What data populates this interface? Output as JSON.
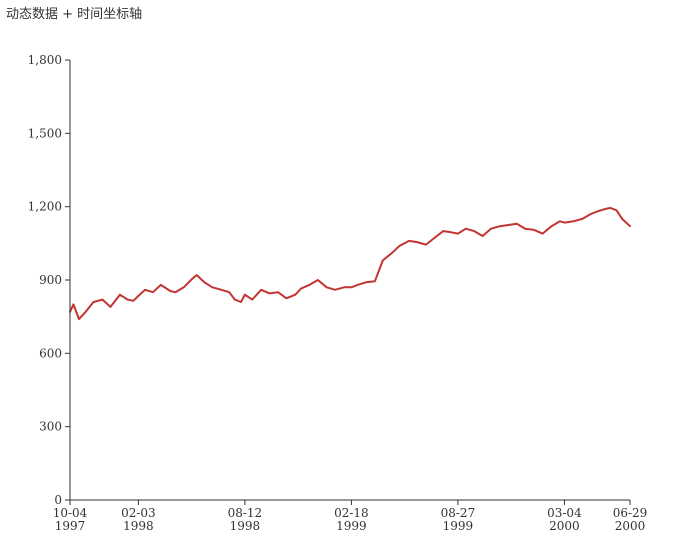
{
  "title": "动态数据 + 时间坐标轴",
  "colors": {
    "series": "#c23531",
    "axis": "#333333",
    "text": "#333333",
    "background": "#ffffff"
  },
  "chart_data": {
    "type": "line",
    "title": "动态数据 + 时间坐标轴",
    "xlabel": "",
    "ylabel": "",
    "grid": false,
    "legend": "none",
    "xlim": [
      "1997-10-04",
      "2000-06-29"
    ],
    "ylim": [
      0,
      1800
    ],
    "y_ticks": [
      0,
      300,
      600,
      900,
      1200,
      1500,
      1800
    ],
    "y_tick_labels": [
      "0",
      "300",
      "600",
      "900",
      "1,200",
      "1,500",
      "1,800"
    ],
    "x_ticks": [
      {
        "date": "1997-10-04",
        "label": [
          "10-04",
          "1997"
        ]
      },
      {
        "date": "1998-02-03",
        "label": [
          "02-03",
          "1998"
        ]
      },
      {
        "date": "1998-08-12",
        "label": [
          "08-12",
          "1998"
        ]
      },
      {
        "date": "1999-02-18",
        "label": [
          "02-18",
          "1999"
        ]
      },
      {
        "date": "1999-08-27",
        "label": [
          "08-27",
          "1999"
        ]
      },
      {
        "date": "2000-03-04",
        "label": [
          "03-04",
          "2000"
        ]
      },
      {
        "date": "2000-06-29",
        "label": [
          "06-29",
          "2000"
        ]
      }
    ],
    "series": [
      {
        "x": [
          "1997-10-04",
          "1997-10-10",
          "1997-10-20",
          "1997-11-01",
          "1997-11-15",
          "1997-12-01",
          "1997-12-15",
          "1998-01-01",
          "1998-01-15",
          "1998-01-25",
          "1998-02-03",
          "1998-02-15",
          "1998-03-01",
          "1998-03-15",
          "1998-04-01",
          "1998-04-10",
          "1998-04-25",
          "1998-05-10",
          "1998-05-18",
          "1998-06-01",
          "1998-06-15",
          "1998-07-01",
          "1998-07-15",
          "1998-07-25",
          "1998-08-05",
          "1998-08-12",
          "1998-08-25",
          "1998-09-10",
          "1998-09-25",
          "1998-10-10",
          "1998-10-25",
          "1998-11-10",
          "1998-11-20",
          "1998-12-05",
          "1998-12-20",
          "1999-01-05",
          "1999-01-20",
          "1999-02-05",
          "1999-02-18",
          "1999-03-01",
          "1999-03-15",
          "1999-04-01",
          "1999-04-15",
          "1999-05-01",
          "1999-05-15",
          "1999-06-01",
          "1999-06-15",
          "1999-07-01",
          "1999-07-15",
          "1999-08-01",
          "1999-08-15",
          "1999-08-27",
          "1999-09-10",
          "1999-09-25",
          "1999-10-10",
          "1999-10-25",
          "1999-11-10",
          "1999-11-25",
          "1999-12-10",
          "1999-12-25",
          "2000-01-10",
          "2000-01-25",
          "2000-02-10",
          "2000-02-25",
          "2000-03-04",
          "2000-03-20",
          "2000-04-05",
          "2000-04-20",
          "2000-05-01",
          "2000-05-15",
          "2000-05-25",
          "2000-06-05",
          "2000-06-15",
          "2000-06-29"
        ],
        "y": [
          770,
          800,
          740,
          770,
          810,
          820,
          790,
          840,
          820,
          815,
          835,
          860,
          850,
          880,
          855,
          850,
          870,
          905,
          920,
          890,
          870,
          860,
          850,
          820,
          810,
          840,
          820,
          860,
          845,
          850,
          825,
          840,
          865,
          880,
          900,
          870,
          860,
          870,
          870,
          880,
          890,
          895,
          980,
          1010,
          1040,
          1060,
          1055,
          1045,
          1070,
          1100,
          1095,
          1090,
          1110,
          1100,
          1080,
          1110,
          1120,
          1125,
          1130,
          1110,
          1105,
          1090,
          1120,
          1140,
          1135,
          1140,
          1150,
          1170,
          1180,
          1190,
          1195,
          1185,
          1150,
          1120
        ]
      }
    ]
  }
}
